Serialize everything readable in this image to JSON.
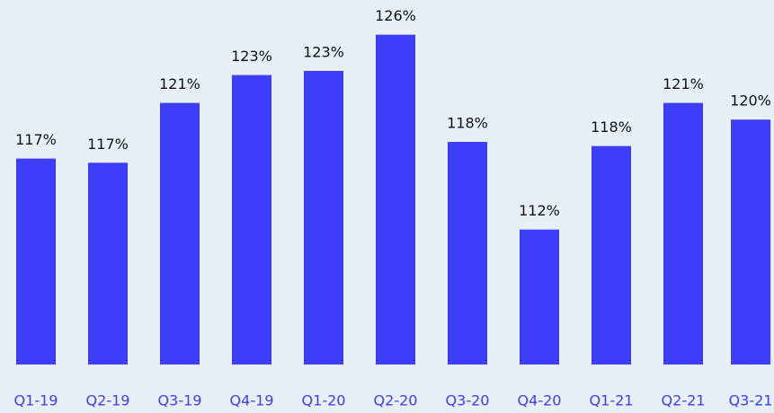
{
  "chart_data": {
    "type": "bar",
    "categories": [
      "Q1-19",
      "Q2-19",
      "Q3-19",
      "Q4-19",
      "Q1-20",
      "Q2-20",
      "Q3-20",
      "Q4-20",
      "Q1-21",
      "Q2-21",
      "Q3-21"
    ],
    "values": [
      117.1,
      116.8,
      121.1,
      123.1,
      123.4,
      126.0,
      118.3,
      112.0,
      118.0,
      121.1,
      119.9
    ],
    "value_labels": [
      "117%",
      "117%",
      "121%",
      "123%",
      "123%",
      "126%",
      "118%",
      "112%",
      "118%",
      "121%",
      "120%"
    ],
    "color": "#3d3dfb",
    "ylim": [
      102.3,
      127.85
    ],
    "grid": false
  }
}
